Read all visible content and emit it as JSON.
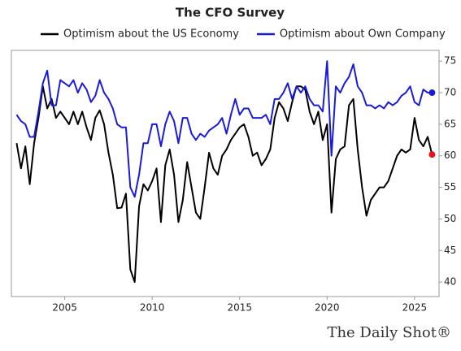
{
  "chart_data": {
    "type": "line",
    "title": "The CFO Survey",
    "source": "The Daily Shot®",
    "x": [
      2002.25,
      2002.5,
      2002.75,
      2003,
      2003.25,
      2003.5,
      2003.75,
      2004,
      2004.25,
      2004.5,
      2004.75,
      2005,
      2005.25,
      2005.5,
      2005.75,
      2006,
      2006.25,
      2006.5,
      2006.75,
      2007,
      2007.25,
      2007.5,
      2007.75,
      2008,
      2008.25,
      2008.5,
      2008.75,
      2009,
      2009.25,
      2009.5,
      2009.75,
      2010,
      2010.25,
      2010.5,
      2010.75,
      2011,
      2011.25,
      2011.5,
      2011.75,
      2012,
      2012.25,
      2012.5,
      2012.75,
      2013,
      2013.25,
      2013.5,
      2013.75,
      2014,
      2014.25,
      2014.5,
      2014.75,
      2015,
      2015.25,
      2015.5,
      2015.75,
      2016,
      2016.25,
      2016.5,
      2016.75,
      2017,
      2017.25,
      2017.5,
      2017.75,
      2018,
      2018.25,
      2018.5,
      2018.75,
      2019,
      2019.25,
      2019.5,
      2019.75,
      2020,
      2020.25,
      2020.5,
      2020.75,
      2021,
      2021.25,
      2021.5,
      2021.75,
      2022,
      2022.25,
      2022.5,
      2022.75,
      2023,
      2023.25,
      2023.5,
      2023.75,
      2024,
      2024.25,
      2024.5,
      2024.75,
      2025,
      2025.25,
      2025.5,
      2025.75,
      2026
    ],
    "series": [
      {
        "name": "Optimism about the US Economy",
        "color": "#000000",
        "end_marker_color": "#e8141b",
        "values": [
          62,
          58,
          61.5,
          55.5,
          62,
          66,
          71,
          67.5,
          69,
          66,
          67,
          66,
          65,
          67,
          65,
          67,
          64.5,
          62.5,
          66,
          67.2,
          65,
          60.5,
          57,
          51.7,
          51.8,
          54,
          42,
          40,
          52,
          55.5,
          54.5,
          56,
          58,
          49.5,
          58.5,
          61,
          57,
          49.5,
          53,
          59,
          55,
          51,
          50,
          55,
          60.5,
          58,
          57,
          60,
          61,
          62.5,
          63.5,
          64.5,
          65,
          63,
          60,
          60.5,
          58.5,
          59.5,
          61,
          66,
          68.5,
          67.5,
          65.5,
          68.5,
          71,
          71,
          70.5,
          67,
          65,
          67,
          62.5,
          65,
          51,
          59.5,
          61,
          61.5,
          68,
          69,
          61,
          55,
          50.5,
          53,
          54,
          55,
          55,
          56,
          58,
          60,
          61,
          60.5,
          61,
          66,
          62.5,
          61.5,
          63,
          60.2
        ]
      },
      {
        "name": "Optimism about Own Company",
        "color": "#1a1adb",
        "end_marker_color": "#1a1adb",
        "values": [
          66.5,
          65.5,
          65,
          63,
          63,
          67,
          71.5,
          73.5,
          68,
          68,
          72,
          71.5,
          71,
          72,
          70,
          71.5,
          70.5,
          68.5,
          69.5,
          72,
          70,
          69,
          67.5,
          65,
          64.5,
          64.5,
          55,
          53.5,
          57,
          62,
          62,
          65,
          65,
          61.5,
          65,
          67,
          65.5,
          62,
          66,
          66,
          63.5,
          62.5,
          63.5,
          63,
          64,
          64.5,
          65,
          66,
          63.5,
          66.5,
          69,
          66.5,
          67.5,
          67.5,
          66,
          66,
          66,
          66.5,
          65,
          69,
          69,
          70,
          71.5,
          69,
          71,
          70,
          71,
          69,
          68,
          68,
          67,
          75,
          60,
          71,
          70,
          71.5,
          72.5,
          74.5,
          71,
          70,
          68,
          68,
          67.5,
          68,
          67.5,
          68.5,
          68,
          68.5,
          69.5,
          70,
          71,
          68.5,
          68,
          70.5,
          70,
          70
        ]
      }
    ],
    "xlim": [
      2001.95,
      2026.4
    ],
    "xticks": [
      2005,
      2010,
      2015,
      2020,
      2025
    ],
    "ylim": [
      37.7,
      76.7
    ],
    "yticks": [
      40,
      45,
      50,
      55,
      60,
      65,
      70,
      75
    ]
  }
}
